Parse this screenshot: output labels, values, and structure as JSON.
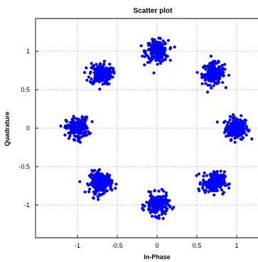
{
  "chart_data": {
    "type": "scatter",
    "title": "Scatter plot",
    "xlabel": "In-Phase",
    "ylabel": "Quadrature",
    "xlim": [
      -1.35,
      1.35
    ],
    "ylim": [
      -1.38,
      1.38
    ],
    "x_ticks": [
      -1,
      -0.5,
      0,
      0.5,
      1
    ],
    "y_ticks": [
      -1,
      -0.5,
      0,
      0.5,
      1
    ],
    "x_tick_labels": [
      "-1",
      "-0.5",
      "0",
      "0.5",
      "1"
    ],
    "y_tick_labels": [
      "-1",
      "-0.5",
      "0",
      "0.5",
      "1"
    ],
    "grid": true,
    "marker_color": "#0000ff",
    "series": [
      {
        "points_per_cluster": 200,
        "cluster_spread": 0.07,
        "cluster_centers": [
          [
            1,
            0
          ],
          [
            0.7071,
            0.7071
          ],
          [
            0,
            1
          ],
          [
            -0.7071,
            0.7071
          ],
          [
            -1,
            0
          ],
          [
            -0.7071,
            -0.7071
          ],
          [
            0,
            -1
          ],
          [
            0.7071,
            -0.7071
          ]
        ]
      }
    ]
  }
}
